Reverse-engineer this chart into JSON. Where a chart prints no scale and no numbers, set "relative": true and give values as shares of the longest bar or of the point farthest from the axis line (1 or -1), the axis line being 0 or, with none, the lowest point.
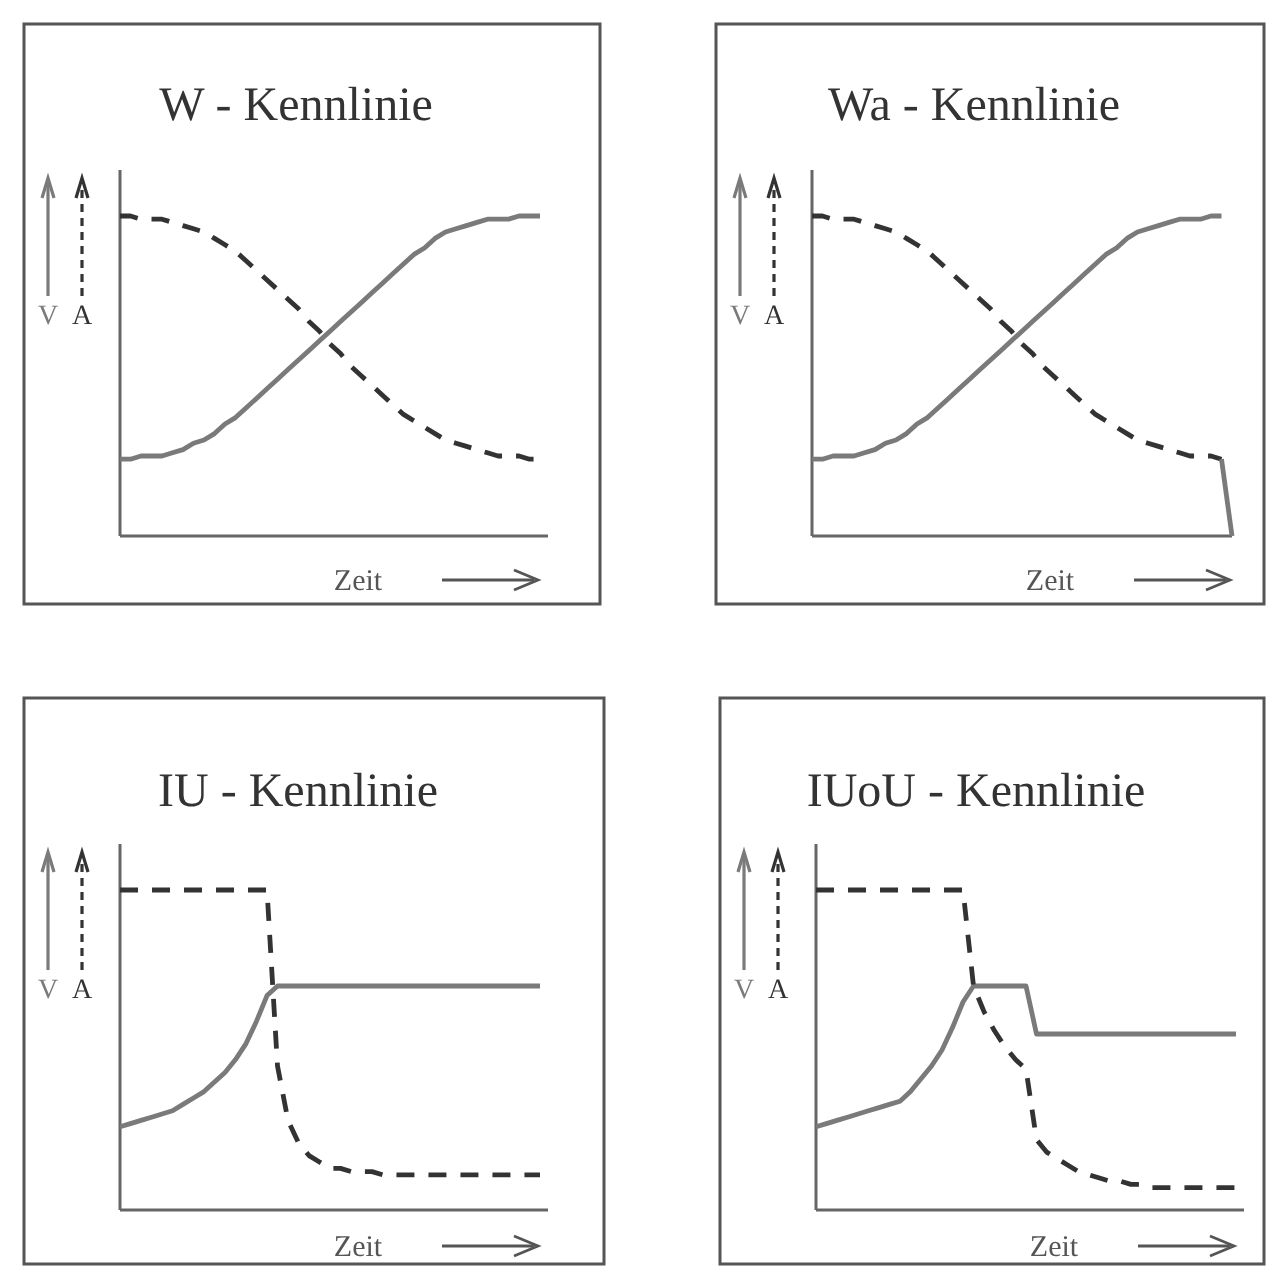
{
  "chart_data": [
    {
      "type": "line",
      "title": "W - Kennlinie",
      "xlabel": "Zeit",
      "relative": true,
      "legend": "left",
      "categories": [
        null,
        null,
        null,
        null,
        null,
        null,
        null,
        null,
        null,
        null,
        null,
        null,
        null,
        null,
        null,
        null,
        null,
        null,
        null,
        null,
        null,
        null,
        null,
        null,
        null,
        null,
        null,
        null,
        null,
        null,
        null,
        null,
        null,
        null,
        null,
        null,
        null,
        null,
        null,
        null,
        null
      ],
      "series": [
        {
          "name": "V",
          "color": "#7a7a7a",
          "line_style": "solid",
          "values": [
            0.24,
            0.24,
            0.25,
            0.25,
            0.25,
            0.26,
            0.27,
            0.29,
            0.3,
            0.32,
            0.35,
            0.37,
            0.4,
            0.43,
            0.46,
            0.49,
            0.52,
            0.55,
            0.58,
            0.61,
            0.64,
            0.67,
            0.7,
            0.73,
            0.76,
            0.79,
            0.82,
            0.85,
            0.88,
            0.9,
            0.93,
            0.95,
            0.96,
            0.97,
            0.98,
            0.99,
            0.99,
            0.99,
            1.0,
            1.0,
            1.0
          ]
        },
        {
          "name": "A",
          "color": "#333333",
          "line_style": "dashed",
          "values": [
            1.0,
            1.0,
            0.99,
            0.99,
            0.99,
            0.98,
            0.97,
            0.96,
            0.95,
            0.93,
            0.91,
            0.89,
            0.86,
            0.83,
            0.8,
            0.77,
            0.74,
            0.71,
            0.67,
            0.64,
            0.6,
            0.57,
            0.53,
            0.5,
            0.47,
            0.44,
            0.41,
            0.38,
            0.36,
            0.34,
            0.32,
            0.3,
            0.29,
            0.28,
            0.27,
            0.26,
            0.25,
            0.25,
            0.25,
            0.24,
            0.24
          ]
        }
      ]
    },
    {
      "type": "line",
      "title": "Wa - Kennlinie",
      "xlabel": "Zeit",
      "relative": true,
      "legend": "left",
      "categories": [
        null,
        null,
        null,
        null,
        null,
        null,
        null,
        null,
        null,
        null,
        null,
        null,
        null,
        null,
        null,
        null,
        null,
        null,
        null,
        null,
        null,
        null,
        null,
        null,
        null,
        null,
        null,
        null,
        null,
        null,
        null,
        null,
        null,
        null,
        null,
        null,
        null,
        null,
        null,
        null,
        null
      ],
      "series": [
        {
          "name": "V",
          "color": "#7a7a7a",
          "line_style": "solid",
          "values": [
            0.24,
            0.24,
            0.25,
            0.25,
            0.25,
            0.26,
            0.27,
            0.29,
            0.3,
            0.32,
            0.35,
            0.37,
            0.4,
            0.43,
            0.46,
            0.49,
            0.52,
            0.55,
            0.58,
            0.61,
            0.64,
            0.67,
            0.7,
            0.73,
            0.76,
            0.79,
            0.82,
            0.85,
            0.88,
            0.9,
            0.93,
            0.95,
            0.96,
            0.97,
            0.98,
            0.99,
            0.99,
            0.99,
            1.0,
            1.0,
            null
          ]
        },
        {
          "name": "A",
          "color": "#333333",
          "line_style": "dashed",
          "values": [
            1.0,
            1.0,
            0.99,
            0.99,
            0.99,
            0.98,
            0.97,
            0.96,
            0.95,
            0.93,
            0.91,
            0.89,
            0.86,
            0.83,
            0.8,
            0.77,
            0.74,
            0.71,
            0.67,
            0.64,
            0.6,
            0.57,
            0.53,
            0.5,
            0.47,
            0.44,
            0.41,
            0.38,
            0.36,
            0.34,
            0.32,
            0.3,
            0.29,
            0.28,
            0.27,
            0.26,
            0.25,
            0.25,
            0.25,
            0.24,
            null
          ]
        },
        {
          "color": "#7a7a7a",
          "line_style": "solid",
          "values": [
            null,
            null,
            null,
            null,
            null,
            null,
            null,
            null,
            null,
            null,
            null,
            null,
            null,
            null,
            null,
            null,
            null,
            null,
            null,
            null,
            null,
            null,
            null,
            null,
            null,
            null,
            null,
            null,
            null,
            null,
            null,
            null,
            null,
            null,
            null,
            null,
            null,
            null,
            null,
            0.24,
            0
          ]
        }
      ]
    },
    {
      "type": "line",
      "title": "IU - Kennlinie",
      "xlabel": "Zeit",
      "relative": true,
      "legend": "left",
      "categories": [
        null,
        null,
        null,
        null,
        null,
        null,
        null,
        null,
        null,
        null,
        null,
        null,
        null,
        null,
        null,
        null,
        null,
        null,
        null,
        null,
        null,
        null,
        null,
        null,
        null,
        null,
        null,
        null,
        null,
        null,
        null,
        null,
        null,
        null,
        null,
        null,
        null,
        null,
        null,
        null,
        null
      ],
      "series": [
        {
          "name": "V",
          "color": "#7a7a7a",
          "line_style": "solid",
          "values": [
            0.26,
            0.27,
            0.28,
            0.29,
            0.3,
            0.31,
            0.33,
            0.35,
            0.37,
            0.4,
            0.43,
            0.47,
            0.52,
            0.59,
            0.67,
            0.7,
            0.7,
            0.7,
            0.7,
            0.7,
            0.7,
            0.7,
            0.7,
            0.7,
            0.7,
            0.7,
            0.7,
            0.7,
            0.7,
            0.7,
            0.7,
            0.7,
            0.7,
            0.7,
            0.7,
            0.7,
            0.7,
            0.7,
            0.7,
            0.7,
            0.7
          ]
        },
        {
          "name": "A",
          "color": "#333333",
          "line_style": "dashed",
          "values": [
            1.0,
            1.0,
            1.0,
            1.0,
            1.0,
            1.0,
            1.0,
            1.0,
            1.0,
            1.0,
            1.0,
            1.0,
            1.0,
            1.0,
            1.0,
            0.45,
            0.28,
            0.21,
            0.17,
            0.15,
            0.13,
            0.13,
            0.12,
            0.12,
            0.12,
            0.11,
            0.11,
            0.11,
            0.11,
            0.11,
            0.11,
            0.11,
            0.11,
            0.11,
            0.11,
            0.11,
            0.11,
            0.11,
            0.11,
            0.11,
            0.11
          ]
        }
      ]
    },
    {
      "type": "line",
      "title": "IUoU - Kennlinie",
      "xlabel": "Zeit",
      "relative": true,
      "legend": "left",
      "categories": [
        null,
        null,
        null,
        null,
        null,
        null,
        null,
        null,
        null,
        null,
        null,
        null,
        null,
        null,
        null,
        null,
        null,
        null,
        null,
        null,
        null,
        null,
        null,
        null,
        null,
        null,
        null,
        null,
        null,
        null,
        null,
        null,
        null,
        null,
        null,
        null,
        null,
        null,
        null,
        null,
        null
      ],
      "series": [
        {
          "name": "V",
          "color": "#7a7a7a",
          "line_style": "solid",
          "values": [
            0.26,
            0.27,
            0.28,
            0.29,
            0.3,
            0.31,
            0.32,
            0.33,
            0.34,
            0.37,
            0.41,
            0.45,
            0.5,
            0.57,
            0.65,
            0.7,
            0.7,
            0.7,
            0.7,
            0.7,
            0.7,
            0.55,
            0.55,
            0.55,
            0.55,
            0.55,
            0.55,
            0.55,
            0.55,
            0.55,
            0.55,
            0.55,
            0.55,
            0.55,
            0.55,
            0.55,
            0.55,
            0.55,
            0.55,
            0.55,
            0.55
          ]
        },
        {
          "name": "A",
          "color": "#333333",
          "line_style": "dashed",
          "values": [
            1.0,
            1.0,
            1.0,
            1.0,
            1.0,
            1.0,
            1.0,
            1.0,
            1.0,
            1.0,
            1.0,
            1.0,
            1.0,
            1.0,
            1.0,
            0.7,
            0.62,
            0.56,
            0.51,
            0.47,
            0.44,
            0.22,
            0.18,
            0.16,
            0.14,
            0.12,
            0.11,
            0.1,
            0.09,
            0.09,
            0.08,
            0.08,
            0.07,
            0.07,
            0.07,
            0.07,
            0.07,
            0.07,
            0.07,
            0.07,
            0.07
          ]
        }
      ]
    }
  ]
}
